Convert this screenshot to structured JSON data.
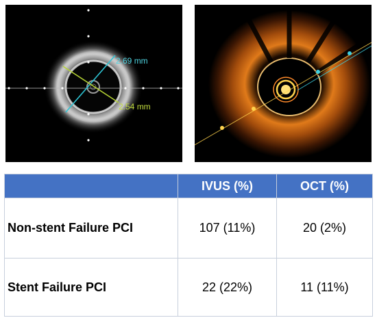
{
  "ivus_image": {
    "measurement_long": "2.69 mm",
    "measurement_short": "2.54 mm"
  },
  "table": {
    "headers": [
      "",
      "IVUS (%)",
      "OCT (%)"
    ],
    "rows": [
      {
        "label": "Non-stent Failure PCI",
        "ivus": "107 (11%)",
        "oct": "20 (2%)"
      },
      {
        "label": "Stent Failure PCI",
        "ivus": "22 (22%)",
        "oct": "11 (11%)"
      }
    ],
    "header_color": "#4472c4"
  }
}
